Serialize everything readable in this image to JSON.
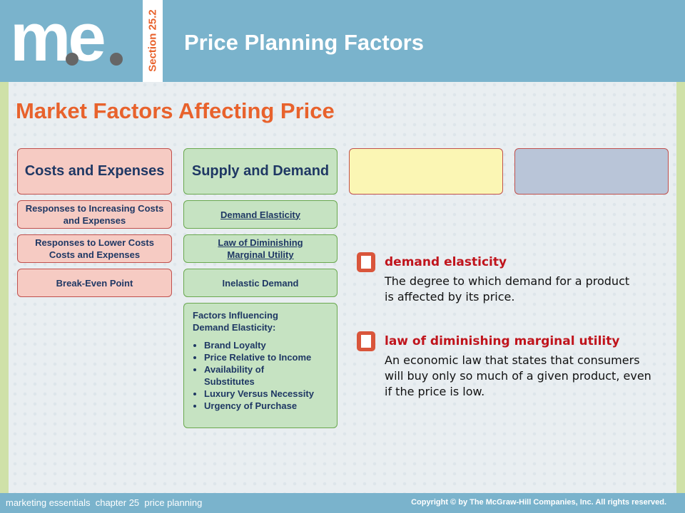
{
  "header": {
    "logo": [
      "m",
      "e"
    ],
    "section": "Section 25.2",
    "title": "Price Planning Factors"
  },
  "heading": "Market Factors Affecting Price",
  "columns": [
    {
      "title": "Costs and Expenses",
      "items": [
        "Responses to Increasing Costs and Expenses",
        "Responses to Lower Costs Costs and Expenses",
        "Break-Even Point"
      ]
    },
    {
      "title": "Supply and Demand",
      "items": [
        "Demand Elasticity",
        "Law of Diminishing Marginal Utility",
        "Inelastic Demand"
      ],
      "factors": {
        "title": "Factors Influencing Demand Elasticity:",
        "bullets": [
          "Brand Loyalty",
          "Price Relative to Income",
          "Availability of Substitutes",
          "Luxury Versus Necessity",
          "Urgency of Purchase"
        ]
      }
    }
  ],
  "definitions": [
    {
      "term": "demand elasticity",
      "text": "The degree to which demand for a product is affected by its price."
    },
    {
      "term": "law of diminishing marginal utility",
      "text": "An economic law that states that consumers will buy only so much of a given product, even if the price is low."
    }
  ],
  "footer": {
    "left": "marketing essentials  chapter 25  price planning",
    "right": "Copyright © by The McGraw-Hill Companies, Inc. All rights reserved."
  }
}
